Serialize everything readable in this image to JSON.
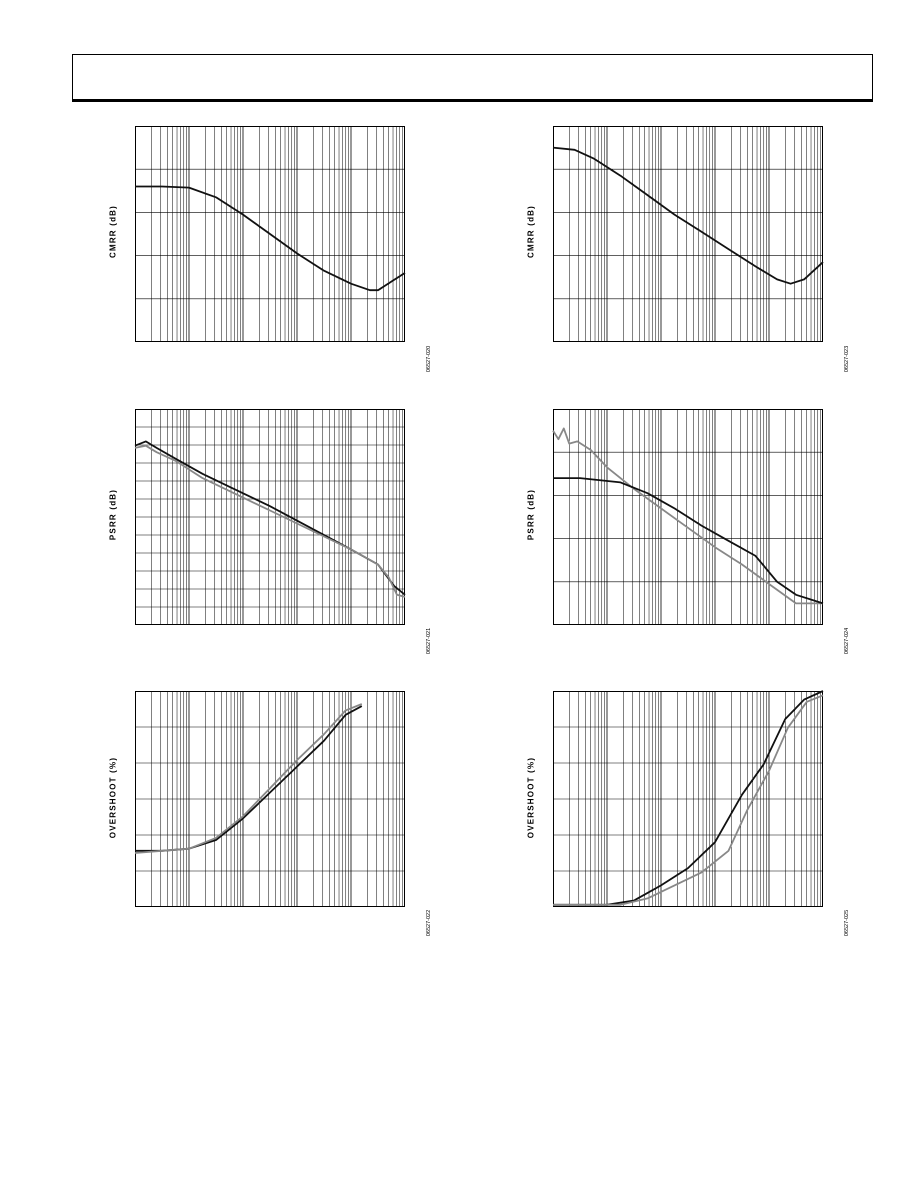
{
  "page": {
    "header": ""
  },
  "chart_data": [
    {
      "type": "line",
      "ylabel": "CMRR (dB)",
      "figure_id": "06527-020",
      "xscale": "log",
      "grid": true,
      "series": [
        {
          "color": "#111111",
          "points": [
            [
              0,
              0.28
            ],
            [
              0.1,
              0.28
            ],
            [
              0.2,
              0.285
            ],
            [
              0.3,
              0.33
            ],
            [
              0.4,
              0.41
            ],
            [
              0.5,
              0.5
            ],
            [
              0.6,
              0.59
            ],
            [
              0.7,
              0.67
            ],
            [
              0.8,
              0.73
            ],
            [
              0.87,
              0.76
            ],
            [
              0.9,
              0.76
            ],
            [
              0.95,
              0.72
            ],
            [
              1,
              0.68
            ]
          ]
        }
      ]
    },
    {
      "type": "line",
      "ylabel": "CMRR (dB)",
      "figure_id": "06527-023",
      "xscale": "log",
      "grid": true,
      "series": [
        {
          "color": "#111111",
          "points": [
            [
              0,
              0.1
            ],
            [
              0.08,
              0.11
            ],
            [
              0.15,
              0.15
            ],
            [
              0.25,
              0.23
            ],
            [
              0.35,
              0.32
            ],
            [
              0.45,
              0.41
            ],
            [
              0.55,
              0.49
            ],
            [
              0.65,
              0.57
            ],
            [
              0.75,
              0.65
            ],
            [
              0.83,
              0.71
            ],
            [
              0.88,
              0.73
            ],
            [
              0.93,
              0.71
            ],
            [
              1,
              0.63
            ]
          ]
        }
      ]
    },
    {
      "type": "line",
      "ylabel": "PSRR (dB)",
      "figure_id": "06527-021",
      "xscale": "log",
      "grid": true,
      "series": [
        {
          "color": "#111111",
          "points": [
            [
              0,
              0.17
            ],
            [
              0.04,
              0.15
            ],
            [
              0.08,
              0.18
            ],
            [
              0.15,
              0.23
            ],
            [
              0.25,
              0.3
            ],
            [
              0.35,
              0.36
            ],
            [
              0.5,
              0.45
            ],
            [
              0.65,
              0.55
            ],
            [
              0.8,
              0.65
            ],
            [
              0.9,
              0.72
            ],
            [
              0.96,
              0.82
            ],
            [
              1,
              0.86
            ]
          ]
        },
        {
          "color": "#888888",
          "points": [
            [
              0,
              0.18
            ],
            [
              0.04,
              0.17
            ],
            [
              0.08,
              0.2
            ],
            [
              0.15,
              0.24
            ],
            [
              0.25,
              0.32
            ],
            [
              0.35,
              0.38
            ],
            [
              0.5,
              0.47
            ],
            [
              0.65,
              0.56
            ],
            [
              0.8,
              0.65
            ],
            [
              0.9,
              0.72
            ],
            [
              0.94,
              0.78
            ],
            [
              0.97,
              0.86
            ],
            [
              1,
              0.87
            ]
          ]
        }
      ]
    },
    {
      "type": "line",
      "ylabel": "PSRR (dB)",
      "figure_id": "06527-024",
      "xscale": "log",
      "grid": true,
      "series": [
        {
          "color": "#888888",
          "points": [
            [
              0,
              0.1
            ],
            [
              0.02,
              0.14
            ],
            [
              0.04,
              0.09
            ],
            [
              0.06,
              0.16
            ],
            [
              0.09,
              0.15
            ],
            [
              0.14,
              0.19
            ],
            [
              0.2,
              0.27
            ],
            [
              0.3,
              0.37
            ],
            [
              0.4,
              0.46
            ],
            [
              0.5,
              0.55
            ],
            [
              0.6,
              0.64
            ],
            [
              0.7,
              0.72
            ],
            [
              0.8,
              0.81
            ],
            [
              0.9,
              0.9
            ],
            [
              1,
              0.9
            ]
          ]
        },
        {
          "color": "#111111",
          "points": [
            [
              0,
              0.32
            ],
            [
              0.1,
              0.32
            ],
            [
              0.25,
              0.34
            ],
            [
              0.35,
              0.39
            ],
            [
              0.45,
              0.46
            ],
            [
              0.55,
              0.54
            ],
            [
              0.65,
              0.61
            ],
            [
              0.75,
              0.68
            ],
            [
              0.83,
              0.8
            ],
            [
              0.9,
              0.86
            ],
            [
              1,
              0.9
            ]
          ]
        }
      ]
    },
    {
      "type": "line",
      "ylabel": "OVERSHOOT (%)",
      "figure_id": "06527-022",
      "xscale": "log",
      "grid": true,
      "series": [
        {
          "color": "#111111",
          "points": [
            [
              0,
              0.74
            ],
            [
              0.1,
              0.74
            ],
            [
              0.2,
              0.73
            ],
            [
              0.3,
              0.69
            ],
            [
              0.4,
              0.59
            ],
            [
              0.5,
              0.47
            ],
            [
              0.6,
              0.35
            ],
            [
              0.7,
              0.23
            ],
            [
              0.78,
              0.11
            ],
            [
              0.84,
              0.07
            ]
          ]
        },
        {
          "color": "#888888",
          "points": [
            [
              0,
              0.75
            ],
            [
              0.1,
              0.74
            ],
            [
              0.2,
              0.73
            ],
            [
              0.3,
              0.68
            ],
            [
              0.4,
              0.58
            ],
            [
              0.5,
              0.45
            ],
            [
              0.6,
              0.32
            ],
            [
              0.7,
              0.2
            ],
            [
              0.78,
              0.09
            ],
            [
              0.84,
              0.06
            ]
          ]
        }
      ]
    },
    {
      "type": "line",
      "ylabel": "OVERSHOOT (%)",
      "figure_id": "06527-025",
      "xscale": "log",
      "grid": true,
      "series": [
        {
          "color": "#111111",
          "points": [
            [
              0,
              0.99
            ],
            [
              0.2,
              0.99
            ],
            [
              0.3,
              0.97
            ],
            [
              0.4,
              0.9
            ],
            [
              0.5,
              0.82
            ],
            [
              0.6,
              0.7
            ],
            [
              0.7,
              0.48
            ],
            [
              0.78,
              0.34
            ],
            [
              0.86,
              0.13
            ],
            [
              0.93,
              0.04
            ],
            [
              1,
              0.0
            ]
          ]
        },
        {
          "color": "#888888",
          "points": [
            [
              0,
              0.99
            ],
            [
              0.25,
              0.99
            ],
            [
              0.35,
              0.96
            ],
            [
              0.45,
              0.9
            ],
            [
              0.55,
              0.84
            ],
            [
              0.65,
              0.74
            ],
            [
              0.72,
              0.55
            ],
            [
              0.8,
              0.37
            ],
            [
              0.87,
              0.17
            ],
            [
              0.94,
              0.05
            ],
            [
              1,
              0.02
            ]
          ]
        }
      ]
    }
  ]
}
